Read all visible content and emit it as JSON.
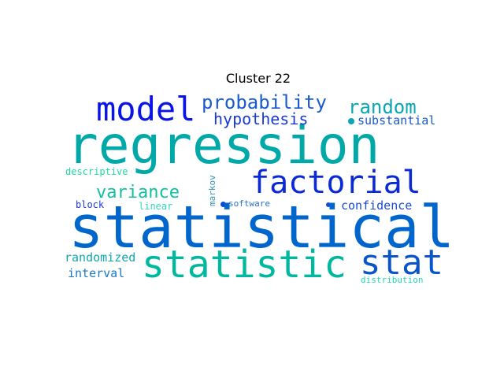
{
  "title": "Cluster 22",
  "words": [
    {
      "text": "regression",
      "color": "#00a8a8"
    },
    {
      "text": "statistical",
      "color": "#0066cc"
    },
    {
      "text": "statistic",
      "color": "#00b8a0"
    },
    {
      "text": "model",
      "color": "#0a14e6"
    },
    {
      "text": "factorial",
      "color": "#0a2ad8"
    },
    {
      "text": "stat",
      "color": "#0a55c8"
    },
    {
      "text": "probability",
      "color": "#1a5ad0"
    },
    {
      "text": "random",
      "color": "#0aa6b2"
    },
    {
      "text": "hypothesis",
      "color": "#1a3ad6"
    },
    {
      "text": "variance",
      "color": "#10c0a0"
    },
    {
      "text": "substantial",
      "color": "#1a58d0"
    },
    {
      "text": "confidence",
      "color": "#1a4ad8"
    },
    {
      "text": "randomized",
      "color": "#10a8b0"
    },
    {
      "text": "interval",
      "color": "#1a78c8"
    },
    {
      "text": "descriptive",
      "color": "#20d8a0"
    },
    {
      "text": "block",
      "color": "#1a3ae0"
    },
    {
      "text": "linear",
      "color": "#30d8b8"
    },
    {
      "text": "markov",
      "color": "#3090b8"
    },
    {
      "text": "software",
      "color": "#2a70c8"
    },
    {
      "text": "distribution",
      "color": "#20d8b0"
    }
  ]
}
